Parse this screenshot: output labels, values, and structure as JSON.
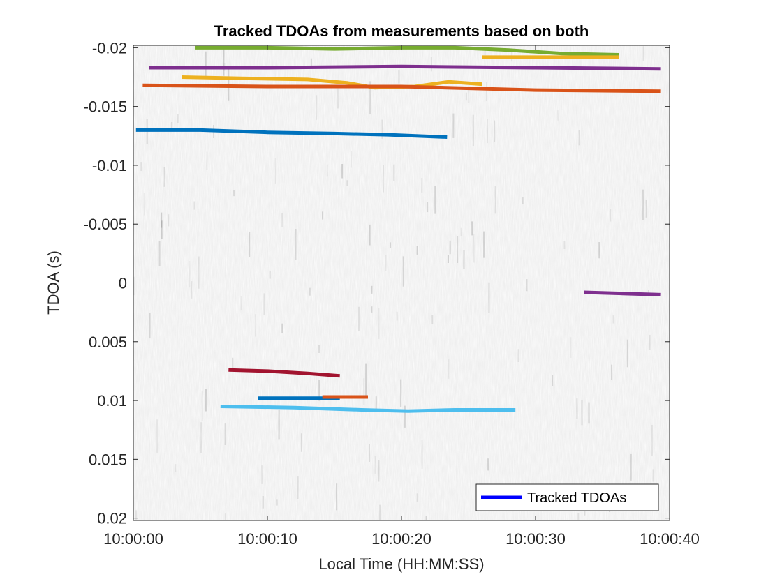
{
  "chart_data": {
    "type": "line",
    "title": "Tracked TDOAs from measurements based on both",
    "xlabel": "Local Time (HH:MM:SS)",
    "ylabel": "TDOA (s)",
    "x_unit": "seconds after 10:00:00",
    "xlim": [
      0,
      40
    ],
    "ylim": [
      -0.0202,
      0.0202
    ],
    "y_reversed": true,
    "x_ticks": [
      0,
      10,
      20,
      30,
      40
    ],
    "x_tick_labels": [
      "10:00:00",
      "10:00:10",
      "10:00:20",
      "10:00:30",
      "10:00:40"
    ],
    "y_ticks": [
      -0.02,
      -0.015,
      -0.01,
      -0.005,
      0,
      0.005,
      0.01,
      0.015,
      0.02
    ],
    "y_tick_labels": [
      "-0.02",
      "-0.015",
      "-0.01",
      "-0.005",
      "0",
      "0.005",
      "0.01",
      "0.015",
      "0.02"
    ],
    "background": "grayscale TDOA measurement image",
    "grid": false,
    "legend": {
      "label": "Tracked TDOAs",
      "position": "bottom-right",
      "color": "#0000ff"
    },
    "series": [
      {
        "color": "#77ac30",
        "x": [
          4.6,
          10,
          15,
          20,
          24,
          28,
          32,
          36.2
        ],
        "y": [
          -0.02,
          -0.02,
          -0.0199,
          -0.02,
          -0.02,
          -0.0198,
          -0.0195,
          -0.0194
        ]
      },
      {
        "color": "#edb120",
        "x": [
          26,
          30,
          36.2
        ],
        "y": [
          -0.0192,
          -0.0192,
          -0.0192
        ]
      },
      {
        "color": "#7e2f8e",
        "x": [
          1.2,
          10,
          20,
          30,
          39.3
        ],
        "y": [
          -0.0183,
          -0.0183,
          -0.0184,
          -0.0183,
          -0.0182
        ]
      },
      {
        "color": "#edb120",
        "x": [
          3.6,
          8,
          13,
          16,
          18,
          21,
          23.5,
          26
        ],
        "y": [
          -0.0175,
          -0.0174,
          -0.0173,
          -0.017,
          -0.0166,
          -0.0167,
          -0.0171,
          -0.0169
        ]
      },
      {
        "color": "#d95319",
        "x": [
          0.7,
          10,
          20,
          30,
          39.3
        ],
        "y": [
          -0.0168,
          -0.0167,
          -0.0167,
          -0.0164,
          -0.0163
        ]
      },
      {
        "color": "#0072bd",
        "x": [
          0.2,
          5,
          10,
          15,
          19,
          23.4
        ],
        "y": [
          -0.013,
          -0.013,
          -0.0128,
          -0.0127,
          -0.0126,
          -0.0124
        ]
      },
      {
        "color": "#7e2f8e",
        "x": [
          33.6,
          36.5,
          39.3
        ],
        "y": [
          0.0008,
          0.0009,
          0.001
        ]
      },
      {
        "color": "#a2142f",
        "x": [
          7.1,
          10,
          13,
          15.4
        ],
        "y": [
          0.0074,
          0.0075,
          0.0077,
          0.0079
        ]
      },
      {
        "color": "#0072bd",
        "x": [
          9.3,
          12,
          15.4
        ],
        "y": [
          0.0098,
          0.0098,
          0.0098
        ]
      },
      {
        "color": "#d95319",
        "x": [
          14.1,
          16,
          17.5
        ],
        "y": [
          0.0097,
          0.0097,
          0.0097
        ]
      },
      {
        "color": "#4dbeee",
        "x": [
          6.5,
          12,
          17,
          20.5,
          24,
          28.5
        ],
        "y": [
          0.0105,
          0.0106,
          0.0108,
          0.0109,
          0.0108,
          0.0108
        ]
      }
    ]
  }
}
